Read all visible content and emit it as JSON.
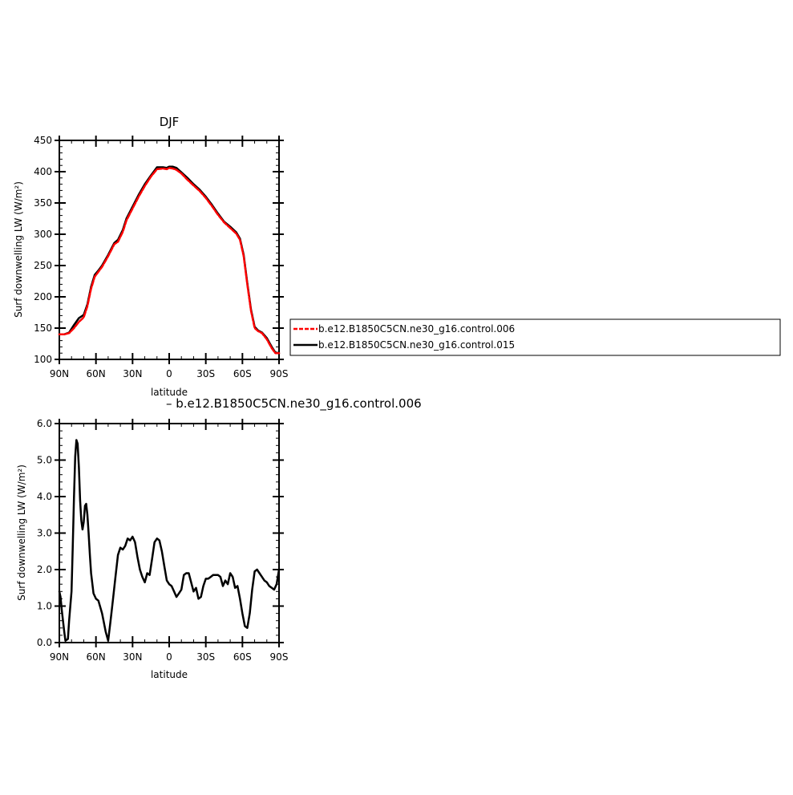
{
  "chart_data": [
    {
      "type": "line",
      "title": "DJF",
      "xlabel": "latitude",
      "ylabel": "Surf downwelling LW (W/m²)",
      "xlim": [
        90,
        -90
      ],
      "ylim": [
        100,
        450
      ],
      "x_ticks": [
        90,
        60,
        30,
        0,
        -30,
        -60,
        -90
      ],
      "x_tick_labels": [
        "90N",
        "60N",
        "30N",
        "0",
        "30S",
        "60S",
        "90S"
      ],
      "y_ticks": [
        100,
        150,
        200,
        250,
        300,
        350,
        400,
        450
      ],
      "y_tick_labels": [
        "100",
        "150",
        "200",
        "250",
        "300",
        "350",
        "400",
        "450"
      ],
      "legend_position": "right",
      "series": [
        {
          "name": "b.e12.B1850C5CN.ne30_g16.control.006",
          "color": "#ff0000",
          "style": "dashed",
          "x": [
            90,
            86,
            82,
            78,
            74,
            70,
            67,
            64,
            61,
            58,
            55,
            50,
            45,
            42,
            38,
            35,
            30,
            25,
            20,
            15,
            10,
            5,
            2,
            0,
            -3,
            -6,
            -10,
            -15,
            -20,
            -25,
            -30,
            -35,
            -40,
            -45,
            -50,
            -55,
            -58,
            -61,
            -64,
            -67,
            -70,
            -73,
            -76,
            -80,
            -84,
            -87,
            -90
          ],
          "y": [
            140,
            140,
            142,
            150,
            160,
            167,
            185,
            213,
            232,
            240,
            248,
            265,
            284,
            288,
            304,
            322,
            341,
            360,
            377,
            392,
            404,
            405,
            404,
            406,
            405,
            403,
            397,
            387,
            378,
            369,
            358,
            345,
            331,
            319,
            310,
            301,
            291,
            265,
            220,
            178,
            150,
            145,
            142,
            132,
            118,
            110,
            110
          ]
        },
        {
          "name": "b.e12.B1850C5CN.ne30_g16.control.015",
          "color": "#000000",
          "style": "solid",
          "x": [
            90,
            86,
            82,
            78,
            74,
            70,
            67,
            64,
            61,
            58,
            55,
            50,
            45,
            42,
            38,
            35,
            30,
            25,
            20,
            15,
            10,
            5,
            2,
            0,
            -3,
            -6,
            -10,
            -15,
            -20,
            -25,
            -30,
            -35,
            -40,
            -45,
            -50,
            -55,
            -58,
            -61,
            -64,
            -67,
            -70,
            -73,
            -76,
            -80,
            -84,
            -87,
            -90
          ],
          "y": [
            140,
            140,
            143,
            155,
            166,
            171,
            188,
            216,
            235,
            242,
            250,
            267,
            286,
            291,
            307,
            325,
            344,
            363,
            380,
            394,
            407,
            407,
            406,
            408,
            408,
            406,
            399,
            390,
            380,
            371,
            360,
            347,
            333,
            320,
            312,
            303,
            293,
            267,
            222,
            180,
            152,
            146,
            143,
            134,
            120,
            111,
            110
          ]
        }
      ]
    },
    {
      "type": "line",
      "title": "",
      "xlabel": "latitude",
      "ylabel": "Surf downwelling LW (W/m²)",
      "xlim": [
        90,
        -90
      ],
      "ylim": [
        0,
        6
      ],
      "x_ticks": [
        90,
        60,
        30,
        0,
        -30,
        -60,
        -90
      ],
      "x_tick_labels": [
        "90N",
        "60N",
        "30N",
        "0",
        "30S",
        "60S",
        "90S"
      ],
      "y_ticks": [
        0,
        1,
        2,
        3,
        4,
        5,
        6
      ],
      "y_tick_labels": [
        "0.0",
        "1.0",
        "2.0",
        "3.0",
        "4.0",
        "5.0",
        "6.0"
      ],
      "series": [
        {
          "name": "b.e12.B1850C5CN.ne30_g16.control.006",
          "color": "#000000",
          "style": "solid",
          "x": [
            90,
            89,
            88,
            86,
            85,
            83,
            82,
            80,
            79,
            78,
            77,
            76,
            75,
            74,
            73,
            72,
            71,
            70,
            69,
            68,
            67,
            66,
            65,
            64,
            62,
            60,
            58,
            55,
            52,
            50,
            48,
            46,
            44,
            42,
            40,
            38,
            36,
            34,
            32,
            30,
            28,
            26,
            24,
            22,
            20,
            18,
            16,
            14,
            12,
            10,
            8,
            6,
            4,
            2,
            0,
            -2,
            -4,
            -6,
            -8,
            -10,
            -12,
            -14,
            -16,
            -18,
            -20,
            -22,
            -24,
            -26,
            -28,
            -30,
            -32,
            -34,
            -36,
            -38,
            -40,
            -42,
            -44,
            -46,
            -48,
            -50,
            -52,
            -54,
            -56,
            -58,
            -60,
            -62,
            -64,
            -66,
            -68,
            -70,
            -72,
            -74,
            -76,
            -78,
            -80,
            -82,
            -84,
            -86,
            -88,
            -90
          ],
          "y": [
            1.4,
            1.25,
            0.9,
            0.3,
            0.05,
            0.1,
            0.6,
            1.4,
            2.6,
            4.0,
            5.1,
            5.55,
            5.45,
            4.8,
            3.9,
            3.35,
            3.1,
            3.3,
            3.75,
            3.8,
            3.5,
            3.0,
            2.4,
            1.9,
            1.35,
            1.2,
            1.15,
            0.8,
            0.3,
            0.05,
            0.6,
            1.2,
            1.8,
            2.4,
            2.6,
            2.55,
            2.65,
            2.85,
            2.8,
            2.9,
            2.75,
            2.35,
            2.0,
            1.8,
            1.65,
            1.9,
            1.85,
            2.3,
            2.75,
            2.85,
            2.8,
            2.5,
            2.1,
            1.7,
            1.6,
            1.55,
            1.4,
            1.25,
            1.35,
            1.45,
            1.85,
            1.9,
            1.9,
            1.65,
            1.4,
            1.5,
            1.2,
            1.25,
            1.55,
            1.75,
            1.75,
            1.8,
            1.85,
            1.85,
            1.85,
            1.8,
            1.55,
            1.7,
            1.6,
            1.9,
            1.8,
            1.5,
            1.55,
            1.2,
            0.8,
            0.45,
            0.4,
            0.8,
            1.45,
            1.95,
            2.0,
            1.9,
            1.8,
            1.7,
            1.65,
            1.55,
            1.5,
            1.45,
            1.6,
            2.0
          ]
        }
      ]
    }
  ],
  "diff_label": "– b.e12.B1850C5CN.ne30_g16.control.006"
}
